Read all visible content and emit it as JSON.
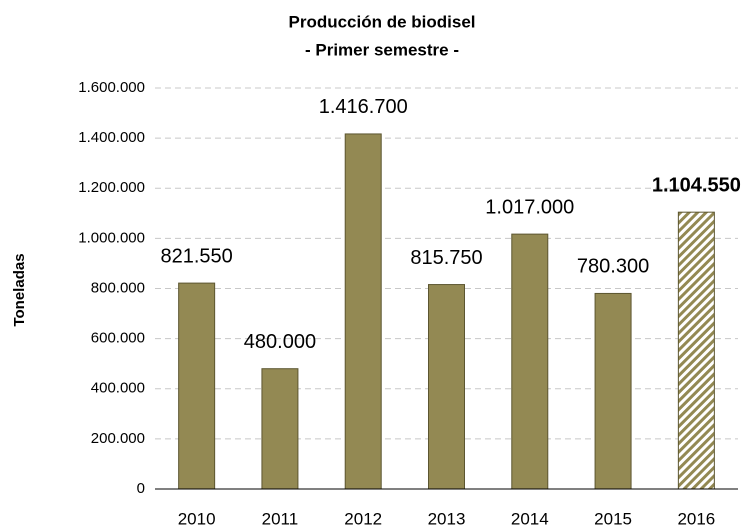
{
  "chart_data": {
    "type": "bar",
    "title": [
      "Producción de biodisel",
      "- Primer semestre -"
    ],
    "y_label": "Toneladas",
    "categories": [
      "2010",
      "2011",
      "2012",
      "2013",
      "2014",
      "2015",
      "2016"
    ],
    "values": [
      821550,
      480000,
      1416700,
      815750,
      1017000,
      780300,
      1104550
    ],
    "value_labels": [
      "821.550",
      "480.000",
      "1.416.700",
      "815.750",
      "1.017.000",
      "780.300",
      "1.104.550"
    ],
    "hatched": [
      false,
      false,
      false,
      false,
      false,
      false,
      true
    ],
    "color": "#938953",
    "ylim": [
      0,
      1600000
    ],
    "yticks": [
      0,
      {
        "value": 200000,
        "label": "200.000"
      },
      {
        "value": 400000,
        "label": "400.000"
      },
      {
        "value": 600000,
        "label": "600.000"
      },
      {
        "value": 800000,
        "label": "800.000"
      },
      {
        "value": 1000000,
        "label": "1.000.000"
      },
      {
        "value": 1200000,
        "label": "1.200.000"
      },
      {
        "value": 1400000,
        "label": "1.400.000"
      },
      {
        "value": 1600000,
        "label": "1.600.000"
      }
    ],
    "grid": true
  }
}
